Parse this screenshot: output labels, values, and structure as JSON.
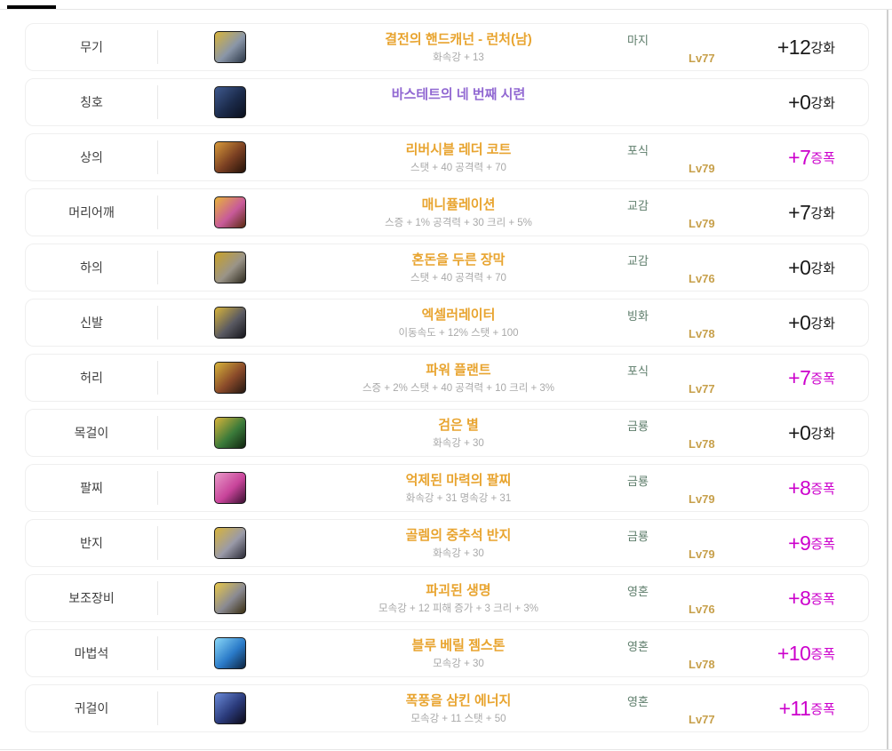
{
  "colors": {
    "item_name_gold": "#E8A42F",
    "title_purple": "#9168D2",
    "stats_gray": "#A9A9A9",
    "enchant_green": "#5E7D6B",
    "level_gold": "#C7A04B",
    "amplify_magenta": "#CC00CC",
    "reinforce_dark": "#1A1A1A",
    "tab_indicator_black": "#000000"
  },
  "rows": [
    {
      "slot": "무기",
      "icon": "weapon-hand-cannon-icon",
      "icon_colors": [
        "#d8b43a",
        "#8a96a8",
        "#2a3646"
      ],
      "name": "결전의 핸드캐넌 - 런처(남)",
      "name_color": "#E8A42F",
      "stats": "화속강 + 13",
      "enchant": "마지",
      "level": "Lv77",
      "enhance_value": "+12",
      "enhance_suffix": "강화",
      "enhance_type": "reinforce"
    },
    {
      "slot": "칭호",
      "icon": "title-bastet-cat-icon",
      "icon_colors": [
        "#3f5a8f",
        "#1b2a4a",
        "#0a0f1c"
      ],
      "name": "바스테트의 네 번째 시련",
      "name_color": "#9168D2",
      "stats": "",
      "enchant": "",
      "level": "",
      "enhance_value": "+0",
      "enhance_suffix": "강화",
      "enhance_type": "reinforce"
    },
    {
      "slot": "상의",
      "icon": "top-leather-coat-icon",
      "icon_colors": [
        "#d89a3a",
        "#7a3f22",
        "#241209"
      ],
      "name": "리버시블 레더 코트",
      "name_color": "#E8A42F",
      "stats": "스탯 + 40 공격력 + 70",
      "enchant": "포식",
      "level": "Lv79",
      "enhance_value": "+7",
      "enhance_suffix": "증폭",
      "enhance_type": "amplify"
    },
    {
      "slot": "머리어깨",
      "icon": "shoulder-orb-icon",
      "icon_colors": [
        "#e8b43a",
        "#c85a9a",
        "#5a2a10"
      ],
      "name": "매니퓰레이션",
      "name_color": "#E8A42F",
      "stats": "스증 + 1% 공격력 + 30 크리 + 5%",
      "enchant": "교감",
      "level": "Lv79",
      "enhance_value": "+7",
      "enhance_suffix": "강화",
      "enhance_type": "reinforce"
    },
    {
      "slot": "하의",
      "icon": "pants-icon",
      "icon_colors": [
        "#c9a227",
        "#9a9488",
        "#2e2a1e"
      ],
      "name": "혼돈을 두른 장막",
      "name_color": "#E8A42F",
      "stats": "스탯 + 40 공격력 + 70",
      "enchant": "교감",
      "level": "Lv76",
      "enhance_value": "+0",
      "enhance_suffix": "강화",
      "enhance_type": "reinforce"
    },
    {
      "slot": "신발",
      "icon": "shoes-icon",
      "icon_colors": [
        "#d8b43a",
        "#5a5a62",
        "#16161c"
      ],
      "name": "엑셀러레이터",
      "name_color": "#E8A42F",
      "stats": "이동속도 + 12% 스탯 + 100",
      "enchant": "빙화",
      "level": "Lv78",
      "enhance_value": "+0",
      "enhance_suffix": "강화",
      "enhance_type": "reinforce"
    },
    {
      "slot": "허리",
      "icon": "belt-icon",
      "icon_colors": [
        "#d8b43a",
        "#8a4a2a",
        "#241812"
      ],
      "name": "파워 플랜트",
      "name_color": "#E8A42F",
      "stats": "스증 + 2% 스탯 + 40 공격력 + 10 크리 + 3%",
      "enchant": "포식",
      "level": "Lv77",
      "enhance_value": "+7",
      "enhance_suffix": "증폭",
      "enhance_type": "amplify"
    },
    {
      "slot": "목걸이",
      "icon": "necklace-icon",
      "icon_colors": [
        "#d8b43a",
        "#3a7a3a",
        "#10240f"
      ],
      "name": "검은 별",
      "name_color": "#E8A42F",
      "stats": "화속강 + 30",
      "enchant": "금룡",
      "level": "Lv78",
      "enhance_value": "+0",
      "enhance_suffix": "강화",
      "enhance_type": "reinforce"
    },
    {
      "slot": "팔찌",
      "icon": "bracelet-icon",
      "icon_colors": [
        "#e89ac8",
        "#c8449a",
        "#3a1030"
      ],
      "name": "억제된 마력의 팔찌",
      "name_color": "#E8A42F",
      "stats": "화속강 + 31 명속강 + 31",
      "enchant": "금룡",
      "level": "Lv79",
      "enhance_value": "+8",
      "enhance_suffix": "증폭",
      "enhance_type": "amplify"
    },
    {
      "slot": "반지",
      "icon": "ring-icon",
      "icon_colors": [
        "#d8b43a",
        "#9a9aa8",
        "#2a2a36"
      ],
      "name": "골렘의 중추석 반지",
      "name_color": "#E8A42F",
      "stats": "화속강 + 30",
      "enchant": "금룡",
      "level": "Lv79",
      "enhance_value": "+9",
      "enhance_suffix": "증폭",
      "enhance_type": "amplify"
    },
    {
      "slot": "보조장비",
      "icon": "sub-equipment-icon",
      "icon_colors": [
        "#e8c84a",
        "#8a8a92",
        "#3a2e10"
      ],
      "name": "파괴된 생명",
      "name_color": "#E8A42F",
      "stats": "모속강 + 12 피해 증가 + 3 크리 + 3%",
      "enchant": "영혼",
      "level": "Lv76",
      "enhance_value": "+8",
      "enhance_suffix": "증폭",
      "enhance_type": "amplify"
    },
    {
      "slot": "마법석",
      "icon": "magic-stone-orb-icon",
      "icon_colors": [
        "#8ad8f8",
        "#2a7ac8",
        "#0c2440"
      ],
      "name": "블루 베릴 젬스톤",
      "name_color": "#E8A42F",
      "stats": "모속강 + 30",
      "enchant": "영혼",
      "level": "Lv78",
      "enhance_value": "+10",
      "enhance_suffix": "증폭",
      "enhance_type": "amplify"
    },
    {
      "slot": "귀걸이",
      "icon": "earring-icon",
      "icon_colors": [
        "#6a8ad8",
        "#2a3a7a",
        "#0c0a18"
      ],
      "name": "폭풍을 삼킨 에너지",
      "name_color": "#E8A42F",
      "stats": "모속강 + 11 스탯 + 50",
      "enchant": "영혼",
      "level": "Lv77",
      "enhance_value": "+11",
      "enhance_suffix": "증폭",
      "enhance_type": "amplify"
    }
  ]
}
